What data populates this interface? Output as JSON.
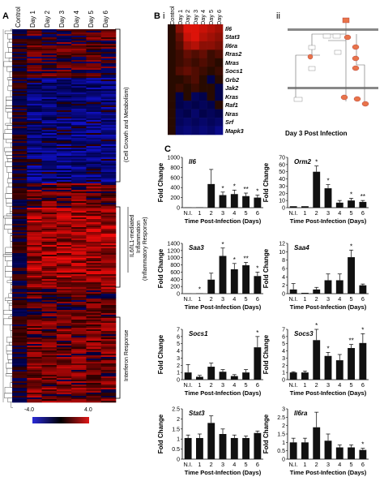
{
  "panels": {
    "a": "A",
    "b": "B",
    "b_i": "i",
    "b_ii": "ii",
    "c": "C"
  },
  "heatmap_columns": [
    "Control",
    "Day 1",
    "Day 2",
    "Day 3",
    "Day 4",
    "Day 5",
    "Day 6"
  ],
  "brackets": {
    "growth": "(Cell Growth and Metabolism)",
    "il6_line1": "IL6/IL1-mediated",
    "il6_line2": "Inflammation",
    "inflammatory": "(Inflammatory Response)",
    "interferon": "Interferon Response"
  },
  "colorbar": {
    "min": "-4.0",
    "max": "4.0",
    "low_color": "#2a2ad8",
    "mid_color": "#000000",
    "high_color": "#e01818"
  },
  "b_heatmap": {
    "columns": [
      "Control",
      "Day 1",
      "Day 2",
      "Day 3",
      "Day 4",
      "Day 5",
      "Day 6"
    ],
    "genes": [
      "Il6",
      "Stat3",
      "Il6ra",
      "Rras2",
      "Mras",
      "Socs1",
      "Grb2",
      "Jak2",
      "Kras",
      "Raf1",
      "Nras",
      "Srf",
      "Mapk3"
    ]
  },
  "pathway_caption": "Day 3 Post Infection",
  "chart_data": [
    {
      "type": "bar",
      "title": "Il6",
      "categories": [
        "N.I.",
        "1",
        "2",
        "3",
        "4",
        "5",
        "6"
      ],
      "values": [
        5,
        8,
        470,
        250,
        270,
        230,
        200
      ],
      "errors": [
        0,
        0,
        290,
        60,
        80,
        60,
        50
      ],
      "sig": [
        "",
        "",
        "",
        "*",
        "*",
        "**",
        "*"
      ],
      "ylim": [
        0,
        1000
      ],
      "yticks": [
        0,
        200,
        400,
        600,
        800,
        1000
      ],
      "ylabel": "Fold Change",
      "xlabel": "Time Post-Infection (Days)"
    },
    {
      "type": "bar",
      "title": "Orm2",
      "categories": [
        "N.I.",
        "1",
        "2",
        "3",
        "4",
        "5",
        "6"
      ],
      "values": [
        2,
        2,
        50,
        27,
        7,
        10,
        8
      ],
      "errors": [
        0,
        0,
        8,
        5,
        3,
        3,
        2
      ],
      "sig": [
        "",
        "",
        "*",
        "*",
        "",
        "*",
        "**"
      ],
      "ylim": [
        0,
        70
      ],
      "yticks": [
        0,
        10,
        20,
        30,
        40,
        50,
        60,
        70
      ],
      "ylabel": "Fold Change",
      "xlabel": "Time Post-Infection (Days)"
    },
    {
      "type": "bar",
      "title": "Saa3",
      "categories": [
        "N.I.",
        "1",
        "2",
        "3",
        "4",
        "5",
        "6"
      ],
      "values": [
        5,
        10,
        390,
        1050,
        680,
        790,
        490
      ],
      "errors": [
        0,
        0,
        180,
        220,
        160,
        80,
        110
      ],
      "sig": [
        "",
        "*",
        "",
        "*",
        "*",
        "**",
        "*"
      ],
      "ylim": [
        0,
        1400
      ],
      "yticks": [
        0,
        200,
        400,
        600,
        800,
        1000,
        1200,
        1400
      ],
      "ylabel": "Fold Change",
      "xlabel": "Time Post-Infection (Days)"
    },
    {
      "type": "bar",
      "title": "Saa4",
      "categories": [
        "N.I.",
        "1",
        "2",
        "3",
        "4",
        "5",
        "6"
      ],
      "values": [
        1,
        0.2,
        1,
        3.2,
        3.2,
        8.7,
        2
      ],
      "errors": [
        1.4,
        0,
        0.5,
        1.5,
        1.5,
        1.7,
        0.3
      ],
      "sig": [
        "",
        "",
        "",
        "",
        "",
        "*",
        ""
      ],
      "ylim": [
        0,
        12
      ],
      "yticks": [
        0,
        2,
        4,
        6,
        8,
        10,
        12
      ],
      "ylabel": "Fold Change",
      "xlabel": "Time Post-Infection (Days)"
    },
    {
      "type": "bar",
      "title": "Socs1",
      "categories": [
        "N.I.",
        "1",
        "2",
        "3",
        "4",
        "5",
        "6"
      ],
      "values": [
        1,
        0.4,
        1.8,
        1.1,
        0.5,
        1.0,
        4.5
      ],
      "errors": [
        1.1,
        0.2,
        0.5,
        0.3,
        0.2,
        0.4,
        1.5
      ],
      "sig": [
        "",
        "",
        "",
        "",
        "",
        "",
        "*"
      ],
      "ylim": [
        0,
        7
      ],
      "yticks": [
        0,
        1,
        2,
        3,
        4,
        5,
        6,
        7
      ],
      "ylabel": "Fold Change",
      "xlabel": "Time Post-Infection (Days)"
    },
    {
      "type": "bar",
      "title": "Socs3",
      "categories": [
        "N.I.",
        "1",
        "2",
        "3",
        "4",
        "5",
        "6"
      ],
      "values": [
        1,
        1,
        5.5,
        3.3,
        2.7,
        4.4,
        5.1
      ],
      "errors": [
        0.1,
        0.2,
        1.5,
        0.5,
        0.8,
        0.5,
        1.3
      ],
      "sig": [
        "",
        "",
        "*",
        "*",
        "",
        "**",
        "*"
      ],
      "ylim": [
        0,
        7
      ],
      "yticks": [
        0,
        1,
        2,
        3,
        4,
        5,
        6,
        7
      ],
      "ylabel": "Fold Change",
      "xlabel": "Time Post-Infection (Days)"
    },
    {
      "type": "bar",
      "title": "Stat3",
      "categories": [
        "N.I.",
        "1",
        "2",
        "3",
        "4",
        "5",
        "6"
      ],
      "values": [
        1.05,
        1.05,
        1.8,
        1.25,
        1.05,
        1.05,
        1.3
      ],
      "errors": [
        0.15,
        0.2,
        0.35,
        0.25,
        0.15,
        0.1,
        0.1
      ],
      "sig": [
        "",
        "",
        "",
        "",
        "",
        "",
        ""
      ],
      "ylim": [
        0,
        2.5
      ],
      "yticks": [
        0,
        0.5,
        1,
        1.5,
        2,
        2.5
      ],
      "ylabel": "Fold Change",
      "xlabel": "Time Post-Infection (Days)"
    },
    {
      "type": "bar",
      "title": "Il6ra",
      "categories": [
        "N.I.",
        "1",
        "2",
        "3",
        "4",
        "5",
        "6"
      ],
      "values": [
        1,
        1,
        1.9,
        1.1,
        0.7,
        0.7,
        0.55
      ],
      "errors": [
        0.25,
        0.25,
        0.9,
        0.4,
        0.15,
        0.15,
        0.1
      ],
      "sig": [
        "",
        "",
        "",
        "",
        "",
        "",
        "*"
      ],
      "ylim": [
        0,
        3
      ],
      "yticks": [
        0,
        0.5,
        1,
        1.5,
        2,
        2.5,
        3
      ],
      "ylabel": "Fold Change",
      "xlabel": "Time Post-Infection (Days)"
    }
  ]
}
